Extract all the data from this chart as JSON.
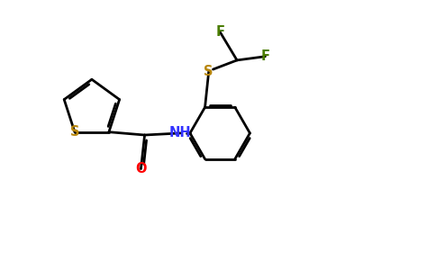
{
  "background_color": "#ffffff",
  "bond_color": "#000000",
  "S_color": "#b8860b",
  "O_color": "#ff0000",
  "N_color": "#3333ff",
  "F_color": "#4a7c00",
  "lw": 2.0,
  "dbo": 0.06,
  "xlim": [
    0,
    10
  ],
  "ylim": [
    0,
    6.2
  ],
  "figsize": [
    4.84,
    3.0
  ],
  "dpi": 100
}
